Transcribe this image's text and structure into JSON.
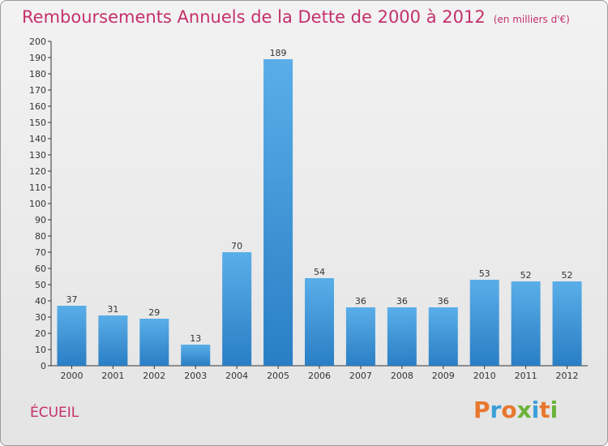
{
  "header": {
    "title": "Remboursements Annuels de la Dette de 2000 à 2012",
    "subtitle": "(en milliers d'€)"
  },
  "footer": {
    "commune": "ÉCUEIL",
    "logo": "Proxiti",
    "logo_colors": [
      "#e8772e",
      "#3a9fd8",
      "#e8772e",
      "#6bb33a",
      "#3a9fd8",
      "#e8772e",
      "#6bb33a"
    ]
  },
  "chart_data": {
    "type": "bar",
    "title": "Remboursements Annuels de la Dette de 2000 à 2012",
    "subtitle": "(en milliers d'€)",
    "categories": [
      "2000",
      "2001",
      "2002",
      "2003",
      "2004",
      "2005",
      "2006",
      "2007",
      "2008",
      "2009",
      "2010",
      "2011",
      "2012"
    ],
    "values": [
      37,
      31,
      29,
      13,
      70,
      189,
      54,
      36,
      36,
      36,
      53,
      52,
      52
    ],
    "ylim": [
      0,
      200
    ],
    "ytick_step": 10,
    "grid": false,
    "bar_color": "#4fa3e0",
    "bar_color_dark": "#2a7ec4"
  }
}
